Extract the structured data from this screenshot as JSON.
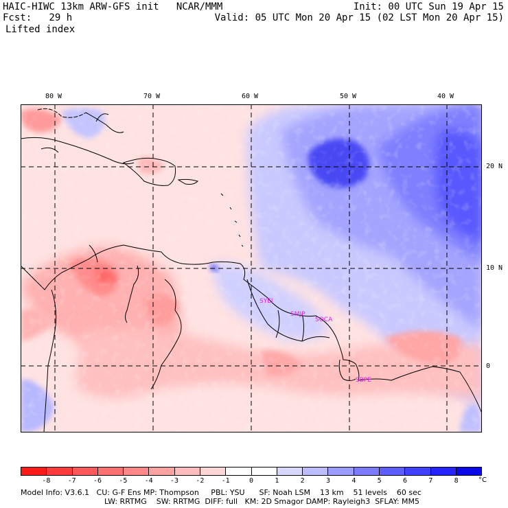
{
  "header": {
    "line1_left": "HAIC-HIWC 13km ARW-GFS init   NCAR/MMM",
    "line1_right": "Init: 00 UTC Sun 19 Apr 15",
    "line2_left": "Fcst:   29 h",
    "line2_right": "Valid: 05 UTC Mon 20 Apr 15 (02 LST Mon 20 Apr 15)",
    "field": "Lifted index"
  },
  "map": {
    "lon_labels": [
      "80 W",
      "70 W",
      "60 W",
      "50 W",
      "40 W"
    ],
    "lat_labels": [
      "20 N",
      "10 N",
      "0"
    ],
    "stations": [
      "SYEI",
      "SMJP",
      "SOCA",
      "SBPE"
    ]
  },
  "colorbar": {
    "colors": [
      "#ff1a1a",
      "#ff3c3c",
      "#ff5858",
      "#ff7070",
      "#ff8888",
      "#ffa2a2",
      "#ffbcbc",
      "#ffd6d6",
      "#ffffff",
      "#ffffff",
      "#d8d8ff",
      "#bcbcff",
      "#9c9cff",
      "#7c7cff",
      "#5e5eff",
      "#4040ff",
      "#2424ff",
      "#0a0ae8"
    ],
    "labels": [
      "-8",
      "-7",
      "-6",
      "-5",
      "-4",
      "-3",
      "-2",
      "-1",
      "0",
      "1",
      "2",
      "3",
      "4",
      "5",
      "6",
      "7",
      "8"
    ],
    "unit": "°C"
  },
  "footer": {
    "line1": "Model Info: V3.6.1   CU: G-F Ens MP: Thompson     PBL: YSU      SF: Noah LSM    13 km    51 levels    60 sec",
    "line2": "LW: RRTMG    SW: RRTMG  DIFF: full   KM: 2D Smagor DAMP: Rayleigh3  SFLAY: MM5"
  },
  "colors": {
    "negative_accent": "#ff1a1a",
    "positive_accent": "#1e1ee6",
    "station_marker": "#e020e0"
  }
}
